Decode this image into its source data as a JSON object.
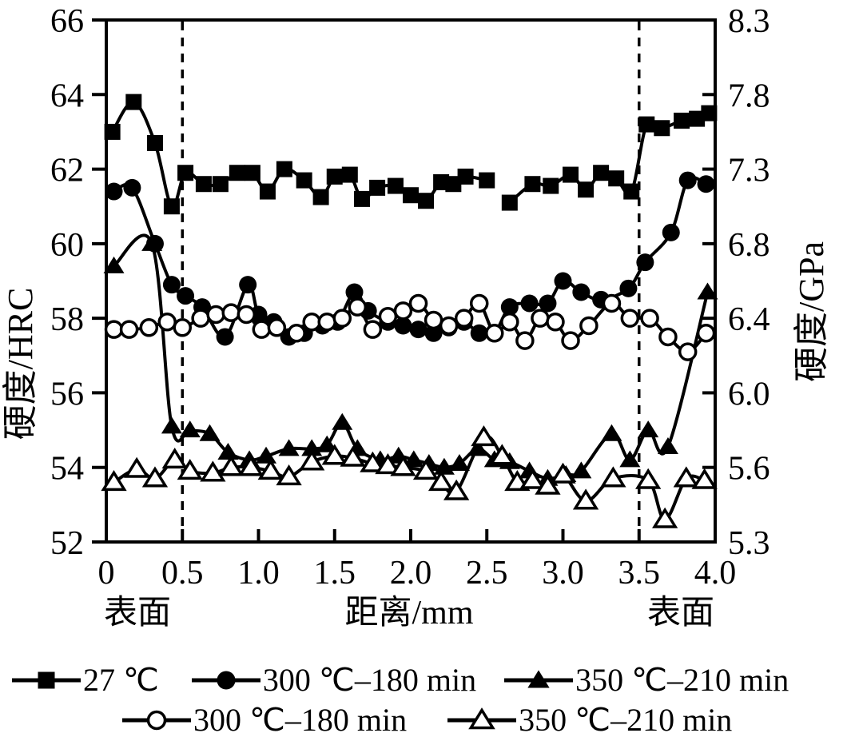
{
  "figure": {
    "surface_label_left": "表面",
    "surface_label_right": "表面"
  },
  "chart_data": {
    "type": "line",
    "title": "",
    "xlabel": "距离/mm",
    "ylabel": "硬度/HRC",
    "ylabel_right": "硬度/GPa",
    "xlim": [
      0,
      4.0
    ],
    "ylim": [
      52,
      66
    ],
    "grid": false,
    "legend_position": "bottom",
    "line_color": "#000000",
    "background_color": "#ffffff",
    "x_ticks": [
      0,
      0.5,
      1.0,
      1.5,
      2.0,
      2.5,
      3.0,
      3.5,
      4.0
    ],
    "x_tick_labels": [
      "0",
      "0.5",
      "1.0",
      "1.5",
      "2.0",
      "2.5",
      "3.0",
      "3.5",
      "4.0"
    ],
    "y_ticks": [
      52,
      54,
      56,
      58,
      60,
      62,
      64,
      66
    ],
    "y_tick_labels_left": [
      "52",
      "54",
      "56",
      "58",
      "60",
      "62",
      "64",
      "66"
    ],
    "y_tick_labels_right": [
      "5.3",
      "5.6",
      "6.0",
      "6.4",
      "6.8",
      "7.3",
      "7.8",
      "8.3"
    ],
    "dashed_guides_x": [
      0.5,
      3.5
    ],
    "series": [
      {
        "name": "27 ℃",
        "marker": "square-filled",
        "x": [
          0.04,
          0.18,
          0.32,
          0.43,
          0.52,
          0.64,
          0.75,
          0.86,
          0.96,
          1.06,
          1.17,
          1.3,
          1.41,
          1.5,
          1.6,
          1.68,
          1.78,
          1.9,
          2.0,
          2.1,
          2.2,
          2.28,
          2.36,
          2.5,
          2.65,
          2.8,
          2.92,
          3.05,
          3.15,
          3.25,
          3.35,
          3.45,
          3.55,
          3.65,
          3.78,
          3.88,
          3.96
        ],
        "y": [
          63.0,
          63.8,
          62.7,
          61.0,
          61.9,
          61.6,
          61.6,
          61.9,
          61.9,
          61.4,
          62.0,
          61.7,
          61.25,
          61.8,
          61.85,
          61.2,
          61.5,
          61.55,
          61.3,
          61.15,
          61.65,
          61.6,
          61.8,
          61.7,
          61.1,
          61.6,
          61.55,
          61.85,
          61.45,
          61.9,
          61.75,
          61.4,
          63.2,
          63.1,
          63.3,
          63.35,
          63.5
        ],
        "line_gaps": [
          [
            2.5,
            2.65
          ]
        ]
      },
      {
        "name": "300 ℃–180 min",
        "marker": "circle-filled",
        "x": [
          0.05,
          0.17,
          0.32,
          0.43,
          0.52,
          0.63,
          0.78,
          0.93,
          1.0,
          1.1,
          1.2,
          1.3,
          1.42,
          1.52,
          1.63,
          1.72,
          1.85,
          1.95,
          2.05,
          2.15,
          2.25,
          2.35,
          2.45,
          2.55,
          2.65,
          2.78,
          2.9,
          3.0,
          3.12,
          3.25,
          3.43,
          3.54,
          3.71,
          3.82,
          3.94
        ],
        "y": [
          61.4,
          61.5,
          60.0,
          58.9,
          58.6,
          58.3,
          57.5,
          58.9,
          58.1,
          57.9,
          57.5,
          57.6,
          57.8,
          57.9,
          58.7,
          58.2,
          57.9,
          57.8,
          57.7,
          57.6,
          57.75,
          57.9,
          57.6,
          57.6,
          58.3,
          58.4,
          58.4,
          59.0,
          58.7,
          58.5,
          58.8,
          59.5,
          60.3,
          61.7,
          61.6
        ]
      },
      {
        "name": "350 ℃–210 min",
        "marker": "triangle-filled",
        "x": [
          0.05,
          0.3,
          0.43,
          0.55,
          0.68,
          0.8,
          0.94,
          1.05,
          1.2,
          1.35,
          1.45,
          1.55,
          1.65,
          1.8,
          1.92,
          2.02,
          2.12,
          2.22,
          2.32,
          2.44,
          2.55,
          2.65,
          2.78,
          2.9,
          3.02,
          3.12,
          3.32,
          3.44,
          3.56,
          3.69,
          3.95
        ],
        "y": [
          59.4,
          60.0,
          55.1,
          55.0,
          54.9,
          54.4,
          54.2,
          54.3,
          54.5,
          54.5,
          54.6,
          55.2,
          54.5,
          54.2,
          54.3,
          54.2,
          54.1,
          54.0,
          54.1,
          54.5,
          54.2,
          54.15,
          53.9,
          53.7,
          53.8,
          53.9,
          54.9,
          54.2,
          55.0,
          54.55,
          58.7
        ]
      },
      {
        "name": "300 ℃–180 min",
        "marker": "circle-open",
        "x": [
          0.05,
          0.15,
          0.28,
          0.4,
          0.5,
          0.62,
          0.72,
          0.82,
          0.92,
          1.02,
          1.12,
          1.25,
          1.35,
          1.45,
          1.55,
          1.65,
          1.75,
          1.85,
          1.95,
          2.05,
          2.15,
          2.25,
          2.35,
          2.45,
          2.55,
          2.65,
          2.75,
          2.85,
          2.95,
          3.05,
          3.17,
          3.32,
          3.44,
          3.57,
          3.69,
          3.82,
          3.94
        ],
        "y": [
          57.7,
          57.7,
          57.75,
          57.9,
          57.75,
          58.0,
          58.1,
          58.15,
          58.1,
          57.7,
          57.75,
          57.6,
          57.9,
          57.9,
          58.0,
          58.3,
          57.7,
          58.05,
          58.2,
          58.4,
          57.95,
          57.8,
          58.0,
          58.4,
          57.6,
          57.9,
          57.4,
          58.0,
          57.9,
          57.4,
          57.8,
          58.4,
          58.0,
          58.0,
          57.5,
          57.1,
          57.6
        ]
      },
      {
        "name": "350 ℃–210 min",
        "marker": "triangle-open",
        "x": [
          0.05,
          0.2,
          0.32,
          0.45,
          0.55,
          0.7,
          0.82,
          0.95,
          1.08,
          1.2,
          1.35,
          1.5,
          1.62,
          1.75,
          1.85,
          1.95,
          2.1,
          2.2,
          2.3,
          2.48,
          2.6,
          2.7,
          2.8,
          2.9,
          3.0,
          3.15,
          3.33,
          3.56,
          3.67,
          3.81,
          3.93
        ],
        "y": [
          53.6,
          53.95,
          53.7,
          54.2,
          53.9,
          53.85,
          54.0,
          54.0,
          53.9,
          53.75,
          54.15,
          54.3,
          54.25,
          54.1,
          54.05,
          54.0,
          53.9,
          53.6,
          53.35,
          54.8,
          54.3,
          53.6,
          53.65,
          53.5,
          53.8,
          53.1,
          53.7,
          53.65,
          52.6,
          53.7,
          53.65
        ]
      }
    ]
  }
}
